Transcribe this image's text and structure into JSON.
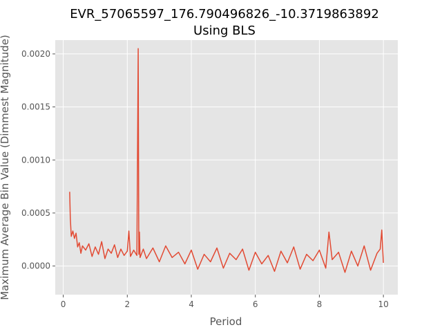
{
  "chart_data": {
    "type": "line",
    "title_line1": "EVR_57065597_176.790496826_-10.3719863892",
    "title_line2": "Using BLS",
    "xlabel": "Period",
    "ylabel": "Maximum Average Bin Value (Dimmest Magnitude)",
    "xlim": [
      -0.25,
      10.45
    ],
    "ylim": [
      -0.00027,
      0.00213
    ],
    "xticks": [
      0,
      2,
      4,
      6,
      8,
      10
    ],
    "xtick_labels": [
      "0",
      "2",
      "4",
      "6",
      "8",
      "10"
    ],
    "yticks": [
      0.0,
      0.0005,
      0.001,
      0.0015,
      0.002
    ],
    "ytick_labels": [
      "0.0000",
      "0.0005",
      "0.0010",
      "0.0015",
      "0.0020"
    ],
    "grid": true,
    "series": [
      {
        "color": "#E24A33",
        "x": [
          0.2,
          0.22,
          0.25,
          0.3,
          0.35,
          0.4,
          0.45,
          0.5,
          0.55,
          0.6,
          0.7,
          0.8,
          0.9,
          1.0,
          1.1,
          1.2,
          1.3,
          1.4,
          1.5,
          1.6,
          1.7,
          1.8,
          1.9,
          2.0,
          2.05,
          2.1,
          2.2,
          2.3,
          2.34,
          2.36,
          2.38,
          2.4,
          2.5,
          2.6,
          2.8,
          3.0,
          3.2,
          3.4,
          3.6,
          3.8,
          4.0,
          4.2,
          4.4,
          4.6,
          4.8,
          5.0,
          5.2,
          5.4,
          5.6,
          5.8,
          6.0,
          6.2,
          6.4,
          6.6,
          6.8,
          7.0,
          7.2,
          7.4,
          7.6,
          7.8,
          8.0,
          8.2,
          8.3,
          8.4,
          8.6,
          8.8,
          9.0,
          9.2,
          9.4,
          9.6,
          9.8,
          9.9,
          9.95,
          10.0
        ],
        "y": [
          0.0007,
          0.00045,
          0.00028,
          0.00033,
          0.00026,
          0.00031,
          0.00018,
          0.00022,
          0.00012,
          0.00019,
          0.00015,
          0.00021,
          9e-05,
          0.00018,
          0.00011,
          0.00023,
          7e-05,
          0.00016,
          0.00012,
          0.0002,
          8e-05,
          0.00016,
          0.0001,
          0.00014,
          0.00033,
          9e-05,
          0.00015,
          0.0001,
          0.00205,
          0.00011,
          0.00032,
          8e-05,
          0.00016,
          7e-05,
          0.00017,
          4e-05,
          0.00019,
          8e-05,
          0.00013,
          2e-05,
          0.00015,
          -3e-05,
          0.00011,
          4e-05,
          0.00017,
          -2e-05,
          0.00012,
          6e-05,
          0.00016,
          -4e-05,
          0.00013,
          2e-05,
          0.0001,
          -5e-05,
          0.00014,
          3e-05,
          0.00018,
          -3e-05,
          0.00011,
          5e-05,
          0.00015,
          -2e-05,
          0.00032,
          6e-05,
          0.00013,
          -6e-05,
          0.00014,
          0.0,
          0.00019,
          -4e-05,
          0.00012,
          0.00016,
          0.00034,
          3e-05
        ]
      }
    ]
  }
}
